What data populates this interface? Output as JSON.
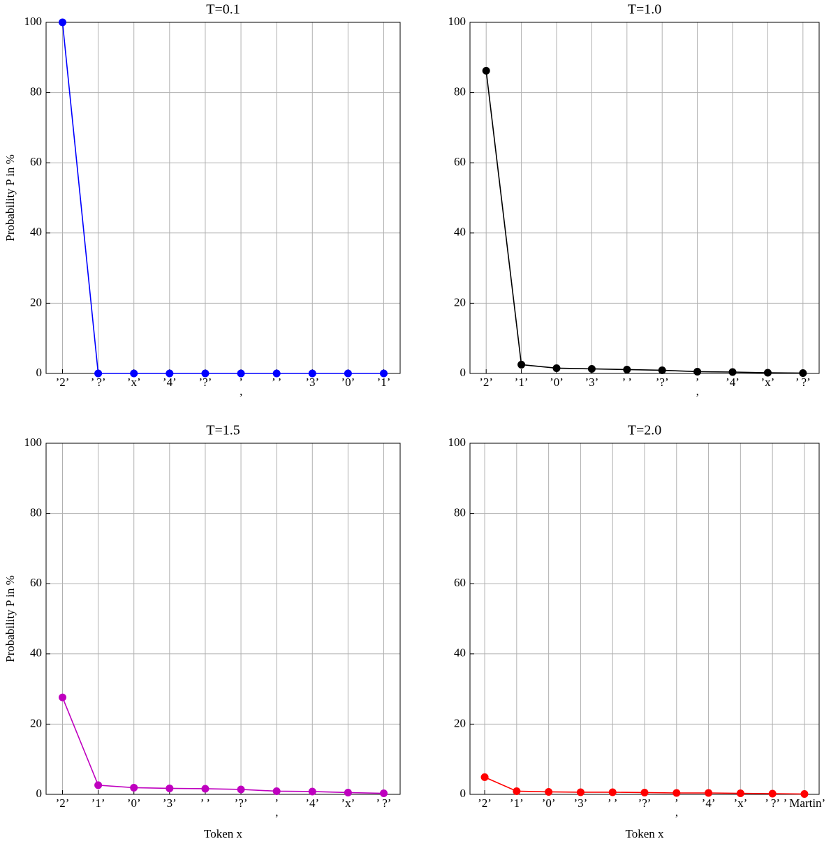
{
  "chart_data": [
    {
      "type": "line",
      "title": "T=0.1",
      "ylabel": "Probability P in %",
      "color": "#0000ff",
      "categories": [
        "’2’",
        "’ ?’",
        "’x’",
        "’4’",
        "’?’",
        "’\n’",
        "’ ’",
        "’3’",
        "’0’",
        "’1’"
      ],
      "values": [
        100,
        0,
        0,
        0,
        0,
        0,
        0,
        0,
        0,
        0
      ],
      "ylim": [
        0,
        100
      ],
      "yticks": [
        0,
        20,
        40,
        60,
        80,
        100
      ],
      "grid": true
    },
    {
      "type": "line",
      "title": "T=1.0",
      "color": "#000000",
      "categories": [
        "’2’",
        "’1’",
        "’0’",
        "’3’",
        "’ ’",
        "’?’",
        "’\n’",
        "’4’",
        "’x’",
        "’ ?’"
      ],
      "values": [
        86.2,
        2.5,
        1.5,
        1.3,
        1.1,
        0.9,
        0.5,
        0.4,
        0.2,
        0.1
      ],
      "ylim": [
        0,
        100
      ],
      "yticks": [
        0,
        20,
        40,
        60,
        80,
        100
      ],
      "grid": true
    },
    {
      "type": "line",
      "title": "T=1.5",
      "ylabel": "Probability P in %",
      "xlabel": "Token x",
      "color": "#bf00bf",
      "categories": [
        "’2’",
        "’1’",
        "’0’",
        "’3’",
        "’ ’",
        "’?’",
        "’\n’",
        "’4’",
        "’x’",
        "’ ?’"
      ],
      "values": [
        27.6,
        2.6,
        1.9,
        1.7,
        1.6,
        1.4,
        0.9,
        0.8,
        0.5,
        0.3
      ],
      "ylim": [
        0,
        100
      ],
      "yticks": [
        0,
        20,
        40,
        60,
        80,
        100
      ],
      "grid": true
    },
    {
      "type": "line",
      "title": "T=2.0",
      "xlabel": "Token x",
      "color": "#ff0000",
      "categories": [
        "’2’",
        "’1’",
        "’0’",
        "’3’",
        "’ ’",
        "’?’",
        "’\n’",
        "’4’",
        "’x’",
        "’ ?’",
        "’ Martin’"
      ],
      "values": [
        4.9,
        0.9,
        0.7,
        0.6,
        0.6,
        0.5,
        0.4,
        0.4,
        0.3,
        0.2,
        0.1
      ],
      "ylim": [
        0,
        100
      ],
      "yticks": [
        0,
        20,
        40,
        60,
        80,
        100
      ],
      "grid": true
    }
  ]
}
